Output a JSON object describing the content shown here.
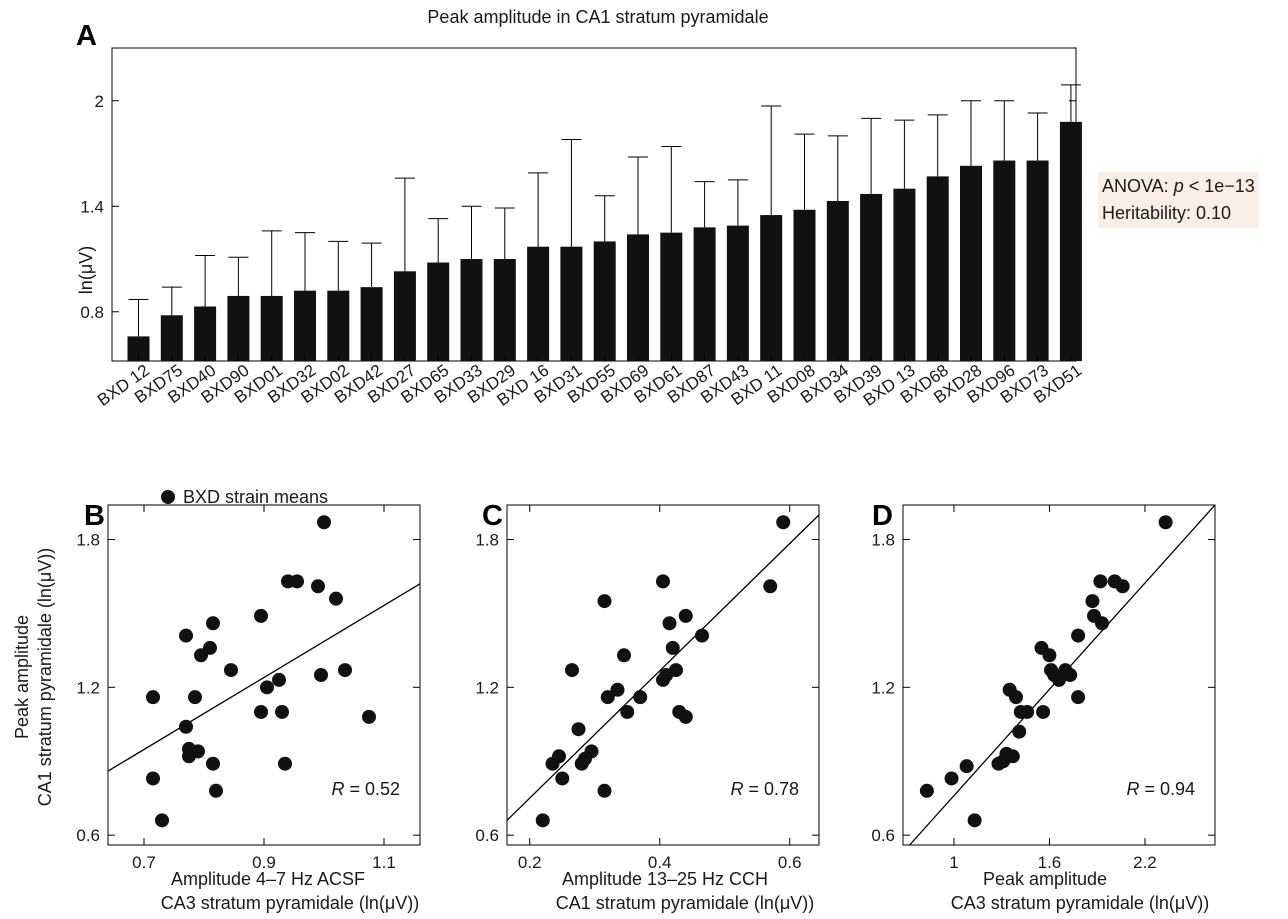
{
  "panels": [
    {
      "letter": "A"
    },
    {
      "letter": "B"
    },
    {
      "letter": "C"
    },
    {
      "letter": "D"
    }
  ],
  "annotation": {
    "anova_prefix": "ANOVA: ",
    "anova_p": "p",
    "anova_suffix": " < 1e−13",
    "heritability": "Heritability: 0.10"
  },
  "chart_data": [
    {
      "panel": "A",
      "type": "bar",
      "title": "Peak amplitude in CA1 stratum pyramidale",
      "ylabel": "ln(μV)",
      "xlabel": "",
      "ylim": [
        0.52,
        2.3
      ],
      "yticks": [
        0.8,
        1.4,
        2
      ],
      "grid": false,
      "categories": [
        "BXD 12",
        "BXD75",
        "BXD40",
        "BXD90",
        "BXD01",
        "BXD32",
        "BXD02",
        "BXD42",
        "BXD27",
        "BXD65",
        "BXD33",
        "BXD29",
        "BXD 16",
        "BXD31",
        "BXD55",
        "BXD69",
        "BXD61",
        "BXD87",
        "BXD43",
        "BXD 11",
        "BXD08",
        "BXD34",
        "BXD39",
        "BXD 13",
        "BXD68",
        "BXD28",
        "BXD96",
        "BXD73",
        "BXD51"
      ],
      "values": [
        0.66,
        0.78,
        0.83,
        0.89,
        0.89,
        0.92,
        0.92,
        0.94,
        1.03,
        1.08,
        1.1,
        1.1,
        1.17,
        1.17,
        1.2,
        1.24,
        1.25,
        1.28,
        1.29,
        1.35,
        1.38,
        1.43,
        1.47,
        1.5,
        1.57,
        1.63,
        1.66,
        1.66,
        1.88
      ],
      "error_upper": [
        0.87,
        0.94,
        1.12,
        1.11,
        1.26,
        1.25,
        1.2,
        1.19,
        1.56,
        1.33,
        1.4,
        1.39,
        1.59,
        1.78,
        1.46,
        1.68,
        1.74,
        1.54,
        1.55,
        1.97,
        1.81,
        1.8,
        1.9,
        1.89,
        1.92,
        2.0,
        2.0,
        1.93,
        2.09
      ]
    },
    {
      "panel": "B",
      "type": "scatter",
      "legend": "BXD strain means",
      "xlabel_line1": "Amplitude 4–7 Hz ACSF",
      "xlabel_line2": "CA3 stratum pyramidale (ln(μV))",
      "ylabel_line1": "Peak amplitude",
      "ylabel_line2": "CA1 stratum pyramidale (ln(μV))",
      "xlim": [
        0.64,
        1.16
      ],
      "ylim": [
        0.56,
        1.94
      ],
      "xticks": [
        0.7,
        0.9,
        1.1
      ],
      "yticks": [
        0.6,
        1.2,
        1.8
      ],
      "R_label": "R",
      "R_value": " = 0.52",
      "fit": [
        [
          0.64,
          0.86
        ],
        [
          1.16,
          1.62
        ]
      ],
      "points": [
        [
          0.715,
          1.16
        ],
        [
          0.715,
          0.83
        ],
        [
          0.73,
          0.66
        ],
        [
          0.77,
          1.41
        ],
        [
          0.77,
          1.04
        ],
        [
          0.775,
          0.92
        ],
        [
          0.775,
          0.95
        ],
        [
          0.785,
          1.16
        ],
        [
          0.79,
          0.94
        ],
        [
          0.795,
          1.33
        ],
        [
          0.81,
          1.36
        ],
        [
          0.815,
          1.46
        ],
        [
          0.815,
          0.89
        ],
        [
          0.82,
          0.78
        ],
        [
          0.845,
          1.27
        ],
        [
          0.895,
          1.49
        ],
        [
          0.895,
          1.1
        ],
        [
          0.905,
          1.2
        ],
        [
          0.925,
          1.23
        ],
        [
          0.93,
          1.1
        ],
        [
          0.935,
          0.89
        ],
        [
          0.94,
          1.63
        ],
        [
          0.955,
          1.63
        ],
        [
          0.99,
          1.61
        ],
        [
          0.995,
          1.25
        ],
        [
          1.0,
          1.87
        ],
        [
          1.02,
          1.56
        ],
        [
          1.035,
          1.27
        ],
        [
          1.075,
          1.08
        ]
      ]
    },
    {
      "panel": "C",
      "type": "scatter",
      "xlabel_line1": "Amplitude 13–25 Hz CCH",
      "xlabel_line2": "CA1 stratum pyramidale (ln(μV))",
      "xlim": [
        0.165,
        0.645
      ],
      "ylim": [
        0.56,
        1.94
      ],
      "xticks": [
        0.2,
        0.4,
        0.6
      ],
      "yticks": [
        0.6,
        1.2,
        1.8
      ],
      "R_label": "R",
      "R_value": " = 0.78",
      "fit": [
        [
          0.165,
          0.66
        ],
        [
          0.645,
          1.9
        ]
      ],
      "points": [
        [
          0.22,
          0.66
        ],
        [
          0.235,
          0.89
        ],
        [
          0.245,
          0.92
        ],
        [
          0.25,
          0.83
        ],
        [
          0.265,
          1.27
        ],
        [
          0.275,
          1.03
        ],
        [
          0.28,
          0.89
        ],
        [
          0.285,
          0.91
        ],
        [
          0.295,
          0.94
        ],
        [
          0.315,
          0.78
        ],
        [
          0.315,
          1.55
        ],
        [
          0.32,
          1.16
        ],
        [
          0.335,
          1.19
        ],
        [
          0.345,
          1.33
        ],
        [
          0.35,
          1.1
        ],
        [
          0.37,
          1.16
        ],
        [
          0.405,
          1.63
        ],
        [
          0.405,
          1.23
        ],
        [
          0.41,
          1.25
        ],
        [
          0.415,
          1.46
        ],
        [
          0.42,
          1.36
        ],
        [
          0.425,
          1.27
        ],
        [
          0.43,
          1.1
        ],
        [
          0.44,
          1.08
        ],
        [
          0.44,
          1.49
        ],
        [
          0.465,
          1.41
        ],
        [
          0.57,
          1.61
        ],
        [
          0.59,
          1.87
        ]
      ]
    },
    {
      "panel": "D",
      "type": "scatter",
      "xlabel_line1": "Peak amplitude",
      "xlabel_line2": "CA3 stratum pyramidale (ln(μV))",
      "xlim": [
        0.68,
        2.64
      ],
      "ylim": [
        0.56,
        1.94
      ],
      "xticks": [
        1.0,
        1.6,
        2.2
      ],
      "yticks": [
        0.6,
        1.2,
        1.8
      ],
      "xtick_labels": [
        "1",
        "1.6",
        "2.2"
      ],
      "R_label": "R",
      "R_value": " = 0.94",
      "fit": [
        [
          0.68,
          0.53
        ],
        [
          2.64,
          1.94
        ]
      ],
      "points": [
        [
          0.83,
          0.78
        ],
        [
          0.985,
          0.83
        ],
        [
          1.08,
          0.88
        ],
        [
          1.13,
          0.66
        ],
        [
          1.28,
          0.89
        ],
        [
          1.31,
          0.9
        ],
        [
          1.33,
          0.93
        ],
        [
          1.35,
          1.19
        ],
        [
          1.37,
          0.92
        ],
        [
          1.39,
          1.16
        ],
        [
          1.41,
          1.02
        ],
        [
          1.42,
          1.1
        ],
        [
          1.46,
          1.1
        ],
        [
          1.55,
          1.36
        ],
        [
          1.56,
          1.1
        ],
        [
          1.6,
          1.33
        ],
        [
          1.61,
          1.27
        ],
        [
          1.63,
          1.25
        ],
        [
          1.66,
          1.23
        ],
        [
          1.7,
          1.27
        ],
        [
          1.73,
          1.25
        ],
        [
          1.78,
          1.41
        ],
        [
          1.78,
          1.16
        ],
        [
          1.87,
          1.55
        ],
        [
          1.88,
          1.49
        ],
        [
          1.92,
          1.63
        ],
        [
          1.93,
          1.46
        ],
        [
          2.01,
          1.63
        ],
        [
          2.06,
          1.61
        ],
        [
          2.33,
          1.87
        ]
      ]
    }
  ]
}
